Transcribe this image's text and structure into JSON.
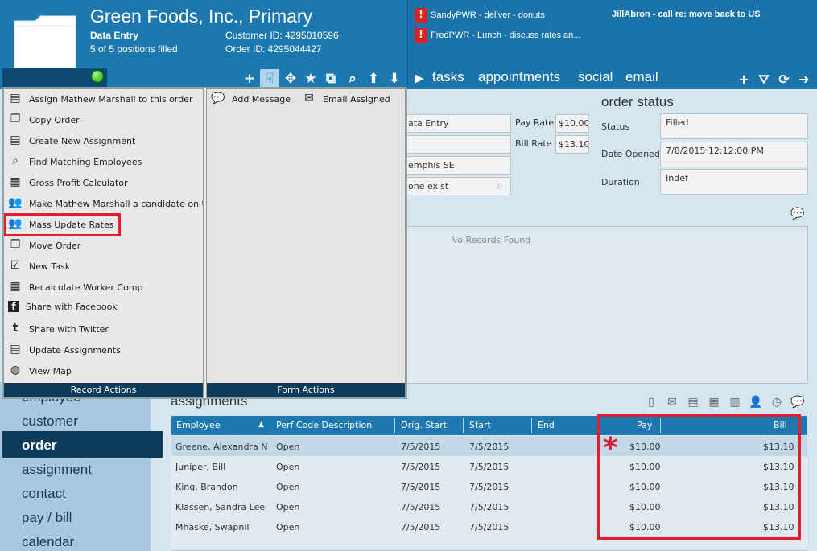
{
  "header": {
    "company": "Green Foods, Inc., Primary",
    "subtitle": "Data Entry",
    "positions": "5 of 5 positions filled",
    "customer_id": "Customer ID: 4295010596",
    "order_id": "Order ID: 4295044427"
  },
  "alerts": [
    {
      "badge": "!",
      "text": "SandyPWR - deliver - donuts"
    },
    {
      "badge": "!",
      "text": "FredPWR - Lunch - discuss rates an..."
    }
  ],
  "alert_bold": "JillAbron - call re: move back to US",
  "nav": {
    "play": "▶",
    "tasks": "tasks",
    "appointments": "appointments",
    "social": "social",
    "email": "email"
  },
  "record_actions": {
    "title": "Record Actions",
    "items": [
      {
        "icon": "document-list-icon",
        "glyph": "▤",
        "label": "Assign Mathew Marshall to this order"
      },
      {
        "icon": "copy-icon",
        "glyph": "❐",
        "label": "Copy Order"
      },
      {
        "icon": "document-list-icon",
        "glyph": "▤",
        "label": "Create New Assignment"
      },
      {
        "icon": "magnifier-icon",
        "glyph": "⌕",
        "label": "Find Matching Employees"
      },
      {
        "icon": "calculator-icon",
        "glyph": "▦",
        "label": "Gross Profit Calculator"
      },
      {
        "icon": "users-icon",
        "glyph": "👥",
        "label": "Make Mathew Marshall a candidate on t"
      },
      {
        "icon": "users-icon",
        "glyph": "👥",
        "label": "Mass Update Rates"
      },
      {
        "icon": "page-icon",
        "glyph": "❐",
        "label": "Move Order"
      },
      {
        "icon": "checkbox-icon",
        "glyph": "☑",
        "label": "New Task"
      },
      {
        "icon": "calculator-icon",
        "glyph": "▦",
        "label": "Recalculate Worker Comp"
      },
      {
        "icon": "facebook-icon",
        "glyph": "f",
        "label": "Share with Facebook"
      },
      {
        "icon": "twitter-icon",
        "glyph": "t",
        "label": "Share with Twitter"
      },
      {
        "icon": "document-list-icon",
        "glyph": "▤",
        "label": "Update Assignments"
      },
      {
        "icon": "globe-icon",
        "glyph": "◍",
        "label": "View Map"
      }
    ]
  },
  "form_actions": {
    "title": "Form Actions",
    "add_message": "Add Message",
    "email_assigned": "Email Assigned"
  },
  "order_details": {
    "field1": "ata Entry",
    "field2": "",
    "field3": "emphis SE",
    "field4": "one exist",
    "pay_rate_label": "Pay Rate",
    "pay_rate": "$10.00",
    "bill_rate_label": "Bill Rate",
    "bill_rate": "$13.10"
  },
  "order_status": {
    "title": "order status",
    "status_label": "Status",
    "status": "Filled",
    "date_opened_label": "Date Opened",
    "date_opened": "7/8/2015 12:12:00 PM",
    "duration_label": "Duration",
    "duration": "Indef"
  },
  "records_panel": {
    "empty_text": "No Records Found"
  },
  "sidebar": {
    "items": [
      "employee",
      "customer",
      "order",
      "assignment",
      "contact",
      "pay / bill",
      "calendar"
    ],
    "active": "order"
  },
  "assignments": {
    "title": "assignments",
    "columns": {
      "employee": "Employee",
      "perf_code": "Perf Code Description",
      "orig_start": "Orig. Start",
      "start": "Start",
      "end": "End",
      "pay": "Pay",
      "bill": "Bill"
    },
    "rows": [
      {
        "employee": "Greene, Alexandra N",
        "perf": "Open",
        "orig": "7/5/2015",
        "start": "7/5/2015",
        "end": "",
        "pay": "$10.00",
        "bill": "$13.10"
      },
      {
        "employee": "Juniper, Bill",
        "perf": "Open",
        "orig": "7/5/2015",
        "start": "7/5/2015",
        "end": "",
        "pay": "$10.00",
        "bill": "$13.10"
      },
      {
        "employee": "King, Brandon",
        "perf": "Open",
        "orig": "7/5/2015",
        "start": "7/5/2015",
        "end": "",
        "pay": "$10.00",
        "bill": "$13.10"
      },
      {
        "employee": "Klassen, Sandra Lee",
        "perf": "Open",
        "orig": "7/5/2015",
        "start": "7/5/2015",
        "end": "",
        "pay": "$10.00",
        "bill": "$13.10"
      },
      {
        "employee": "Mhaske, Swapnil",
        "perf": "Open",
        "orig": "7/5/2015",
        "start": "7/5/2015",
        "end": "",
        "pay": "$10.00",
        "bill": "$13.10"
      }
    ]
  },
  "annotation": {
    "asterisk": "*"
  },
  "colors": {
    "header": "#1e78b0",
    "accent_red": "#e0202c",
    "dark_nav": "#0d3b5a"
  }
}
